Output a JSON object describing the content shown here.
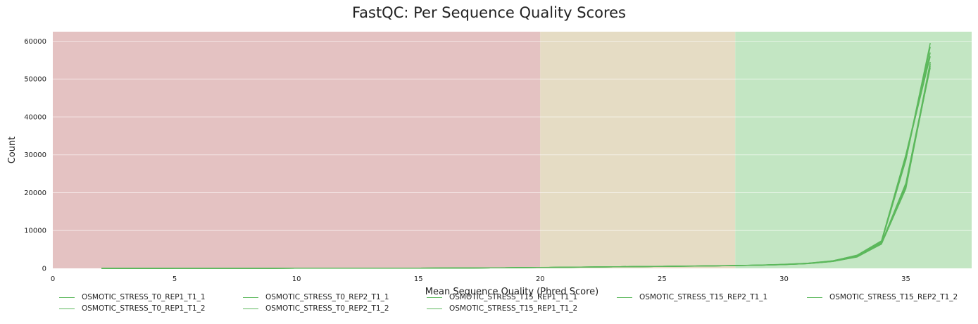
{
  "chart_data": {
    "type": "line",
    "title": "FastQC: Per Sequence Quality Scores",
    "xlabel": "Mean Sequence Quality (Phred Score)",
    "ylabel": "Count",
    "xlim": [
      0,
      37.7
    ],
    "ylim": [
      0,
      62500
    ],
    "x_ticks": [
      0,
      5,
      10,
      15,
      20,
      25,
      30,
      35
    ],
    "y_ticks": [
      0,
      10000,
      20000,
      30000,
      40000,
      50000,
      60000
    ],
    "grid": true,
    "legend_position": "bottom",
    "zones": [
      {
        "from": 0,
        "to": 20,
        "color": "#e4c2c2"
      },
      {
        "from": 20,
        "to": 28,
        "color": "#e5dcc4"
      },
      {
        "from": 28,
        "to": 37.7,
        "color": "#c3e6c3"
      }
    ],
    "line_color": "#5cb85c",
    "x": [
      2,
      3,
      4,
      5,
      6,
      7,
      8,
      9,
      10,
      11,
      12,
      13,
      14,
      15,
      16,
      17,
      18,
      19,
      20,
      21,
      22,
      23,
      24,
      25,
      26,
      27,
      28,
      29,
      30,
      31,
      32,
      33,
      34,
      35,
      36
    ],
    "series": [
      {
        "name": "OSMOTIC_STRESS_T0_REP1_T1_1",
        "values": [
          10,
          5,
          8,
          10,
          12,
          15,
          20,
          25,
          30,
          35,
          40,
          45,
          55,
          65,
          80,
          100,
          130,
          170,
          220,
          280,
          340,
          400,
          460,
          520,
          580,
          640,
          720,
          820,
          980,
          1250,
          1800,
          3000,
          6500,
          22000,
          53000
        ]
      },
      {
        "name": "OSMOTIC_STRESS_T0_REP1_T1_2",
        "values": [
          10,
          5,
          8,
          10,
          12,
          15,
          20,
          25,
          30,
          35,
          40,
          45,
          55,
          65,
          80,
          100,
          130,
          170,
          225,
          285,
          345,
          405,
          465,
          525,
          590,
          650,
          730,
          830,
          1000,
          1280,
          1850,
          3100,
          6700,
          22500,
          54000
        ]
      },
      {
        "name": "OSMOTIC_STRESS_T0_REP2_T1_1",
        "values": [
          10,
          5,
          8,
          10,
          12,
          15,
          20,
          25,
          30,
          35,
          40,
          45,
          55,
          65,
          80,
          105,
          135,
          175,
          230,
          290,
          350,
          410,
          470,
          530,
          600,
          670,
          750,
          860,
          1050,
          1350,
          1950,
          3300,
          6900,
          28500,
          58500
        ]
      },
      {
        "name": "OSMOTIC_STRESS_T0_REP2_T1_2",
        "values": [
          10,
          5,
          8,
          10,
          12,
          15,
          20,
          25,
          30,
          35,
          40,
          45,
          55,
          65,
          80,
          105,
          135,
          180,
          235,
          295,
          355,
          415,
          480,
          540,
          610,
          680,
          760,
          870,
          1070,
          1380,
          2000,
          3400,
          7100,
          29000,
          59500
        ]
      },
      {
        "name": "OSMOTIC_STRESS_T15_REP1_T1_1",
        "values": [
          10,
          5,
          8,
          10,
          12,
          15,
          20,
          25,
          30,
          35,
          40,
          45,
          55,
          65,
          80,
          100,
          130,
          170,
          225,
          285,
          345,
          405,
          465,
          525,
          590,
          655,
          740,
          840,
          1020,
          1320,
          1950,
          3450,
          7200,
          29500,
          56000
        ]
      },
      {
        "name": "OSMOTIC_STRESS_T15_REP1_T1_2",
        "values": [
          10,
          5,
          8,
          10,
          12,
          15,
          20,
          25,
          30,
          35,
          40,
          45,
          55,
          65,
          80,
          100,
          130,
          170,
          225,
          285,
          345,
          405,
          465,
          530,
          595,
          660,
          745,
          850,
          1030,
          1330,
          1980,
          3500,
          7300,
          30000,
          57000
        ]
      },
      {
        "name": "OSMOTIC_STRESS_T15_REP2_T1_1",
        "values": [
          10,
          5,
          8,
          10,
          12,
          15,
          20,
          25,
          30,
          35,
          40,
          45,
          55,
          65,
          80,
          100,
          130,
          170,
          220,
          280,
          340,
          400,
          460,
          520,
          585,
          645,
          725,
          825,
          990,
          1260,
          1820,
          3050,
          6400,
          21000,
          53500
        ]
      },
      {
        "name": "OSMOTIC_STRESS_T15_REP2_T1_2",
        "values": [
          10,
          5,
          8,
          10,
          12,
          15,
          20,
          25,
          30,
          35,
          40,
          45,
          55,
          65,
          80,
          100,
          130,
          170,
          220,
          280,
          340,
          400,
          460,
          520,
          585,
          650,
          730,
          830,
          1000,
          1270,
          1840,
          3100,
          6550,
          21500,
          54500
        ]
      }
    ]
  },
  "legend_layout": [
    [
      "OSMOTIC_STRESS_T0_REP1_T1_1",
      "OSMOTIC_STRESS_T0_REP1_T1_2"
    ],
    [
      "OSMOTIC_STRESS_T0_REP2_T1_1",
      "OSMOTIC_STRESS_T0_REP2_T1_2"
    ],
    [
      "OSMOTIC_STRESS_T15_REP1_T1_1",
      "OSMOTIC_STRESS_T15_REP1_T1_2"
    ],
    [
      "OSMOTIC_STRESS_T15_REP2_T1_1"
    ],
    [
      "OSMOTIC_STRESS_T15_REP2_T1_2"
    ]
  ]
}
